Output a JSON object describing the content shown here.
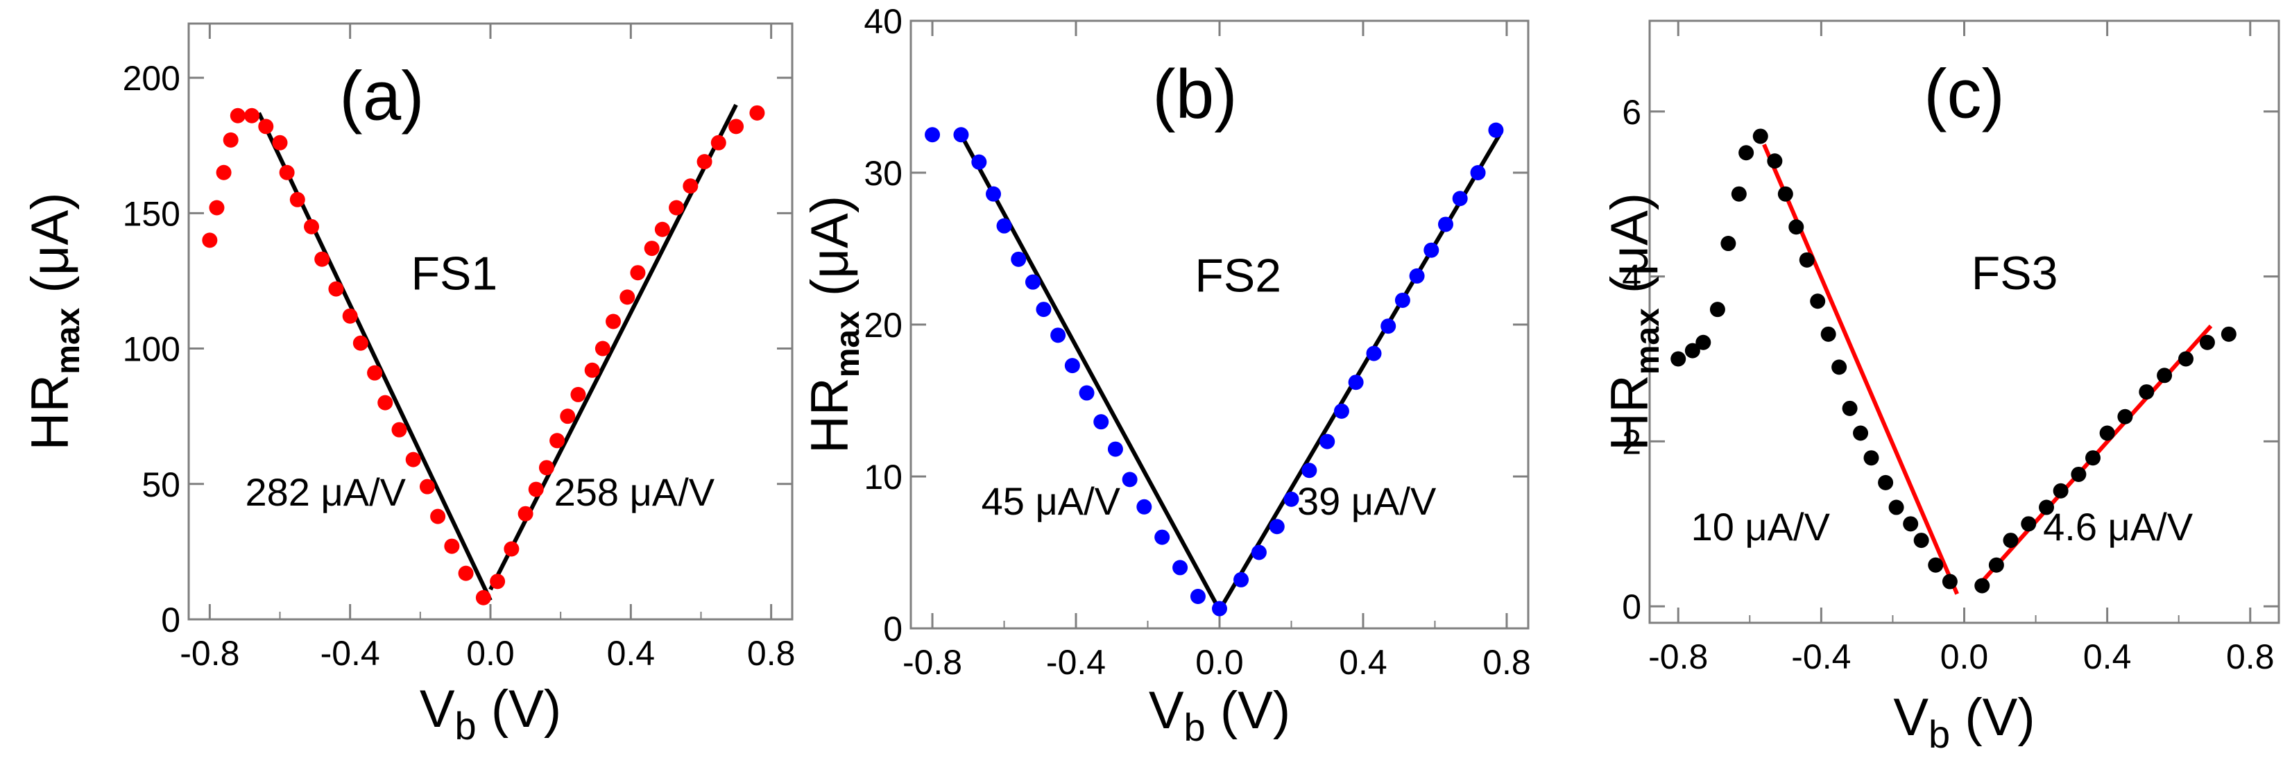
{
  "chart_data": [
    {
      "type": "scatter",
      "panel_label": "(a)",
      "sample_label": "FS1",
      "xlabel": {
        "main": "V",
        "sub": "b",
        "unit": " (V)"
      },
      "ylabel": {
        "main": "HR",
        "sub": "max",
        "unit": " (μA)"
      },
      "xlim": [
        -0.86,
        0.86
      ],
      "ylim": [
        0,
        220
      ],
      "xticks": [
        -0.8,
        -0.4,
        0.0,
        0.4,
        0.8
      ],
      "xtick_labels": [
        "-0.8",
        "-0.4",
        "0.0",
        "0.4",
        "0.8"
      ],
      "yticks": [
        0,
        50,
        100,
        150,
        200
      ],
      "ytick_labels": [
        "0",
        "50",
        "100",
        "150",
        "200"
      ],
      "grid": false,
      "point_color": "#ff0000",
      "fit_color": "#000000",
      "slope_labels": [
        "282 μA/V",
        "258 μA/V"
      ],
      "points": [
        [
          -0.8,
          140
        ],
        [
          -0.78,
          152
        ],
        [
          -0.76,
          165
        ],
        [
          -0.74,
          177
        ],
        [
          -0.72,
          186
        ],
        [
          -0.68,
          186
        ],
        [
          -0.64,
          182
        ],
        [
          -0.6,
          176
        ],
        [
          -0.58,
          165
        ],
        [
          -0.55,
          155
        ],
        [
          -0.51,
          145
        ],
        [
          -0.48,
          133
        ],
        [
          -0.44,
          122
        ],
        [
          -0.4,
          112
        ],
        [
          -0.37,
          102
        ],
        [
          -0.33,
          91
        ],
        [
          -0.3,
          80
        ],
        [
          -0.26,
          70
        ],
        [
          -0.22,
          59
        ],
        [
          -0.18,
          49
        ],
        [
          -0.15,
          38
        ],
        [
          -0.11,
          27
        ],
        [
          -0.07,
          17
        ],
        [
          -0.02,
          8
        ],
        [
          0.02,
          14
        ],
        [
          0.06,
          26
        ],
        [
          0.1,
          39
        ],
        [
          0.13,
          48
        ],
        [
          0.16,
          56
        ],
        [
          0.19,
          66
        ],
        [
          0.22,
          75
        ],
        [
          0.25,
          83
        ],
        [
          0.29,
          92
        ],
        [
          0.32,
          100
        ],
        [
          0.35,
          110
        ],
        [
          0.39,
          119
        ],
        [
          0.42,
          128
        ],
        [
          0.46,
          137
        ],
        [
          0.49,
          144
        ],
        [
          0.53,
          152
        ],
        [
          0.57,
          160
        ],
        [
          0.61,
          169
        ],
        [
          0.65,
          176
        ],
        [
          0.7,
          182
        ],
        [
          0.76,
          187
        ]
      ],
      "fit_lines": [
        {
          "x": [
            -0.66,
            0.0
          ],
          "y": [
            187,
            7
          ]
        },
        {
          "x": [
            0.0,
            0.7
          ],
          "y": [
            11,
            190
          ]
        }
      ]
    },
    {
      "type": "scatter",
      "panel_label": "(b)",
      "sample_label": "FS2",
      "xlabel": {
        "main": "V",
        "sub": "b",
        "unit": " (V)"
      },
      "ylabel": {
        "main": "HR",
        "sub": "max",
        "unit": " (μA)"
      },
      "xlim": [
        -0.86,
        0.86
      ],
      "ylim": [
        0,
        40
      ],
      "xticks": [
        -0.8,
        -0.4,
        0.0,
        0.4,
        0.8
      ],
      "xtick_labels": [
        "-0.8",
        "-0.4",
        "0.0",
        "0.4",
        "0.8"
      ],
      "yticks": [
        0,
        10,
        20,
        30,
        40
      ],
      "ytick_labels": [
        "0",
        "10",
        "20",
        "30",
        "40"
      ],
      "grid": false,
      "point_color": "#0000ff",
      "fit_color": "#000000",
      "slope_labels": [
        "45 μA/V",
        "39 μA/V"
      ],
      "points": [
        [
          -0.8,
          32.5
        ],
        [
          -0.72,
          32.5
        ],
        [
          -0.67,
          30.7
        ],
        [
          -0.63,
          28.6
        ],
        [
          -0.6,
          26.5
        ],
        [
          -0.56,
          24.3
        ],
        [
          -0.52,
          22.8
        ],
        [
          -0.49,
          21.0
        ],
        [
          -0.45,
          19.3
        ],
        [
          -0.41,
          17.3
        ],
        [
          -0.37,
          15.5
        ],
        [
          -0.33,
          13.6
        ],
        [
          -0.29,
          11.8
        ],
        [
          -0.25,
          9.8
        ],
        [
          -0.21,
          8.0
        ],
        [
          -0.16,
          6.0
        ],
        [
          -0.11,
          4.0
        ],
        [
          -0.06,
          2.1
        ],
        [
          0.0,
          1.3
        ],
        [
          0.06,
          3.2
        ],
        [
          0.11,
          5.0
        ],
        [
          0.16,
          6.7
        ],
        [
          0.2,
          8.5
        ],
        [
          0.25,
          10.4
        ],
        [
          0.3,
          12.3
        ],
        [
          0.34,
          14.3
        ],
        [
          0.38,
          16.2
        ],
        [
          0.43,
          18.1
        ],
        [
          0.47,
          19.9
        ],
        [
          0.51,
          21.6
        ],
        [
          0.55,
          23.2
        ],
        [
          0.59,
          24.9
        ],
        [
          0.63,
          26.6
        ],
        [
          0.67,
          28.3
        ],
        [
          0.72,
          30.0
        ],
        [
          0.77,
          32.8
        ]
      ],
      "fit_lines": [
        {
          "x": [
            -0.72,
            0.0
          ],
          "y": [
            32.5,
            1.2
          ]
        },
        {
          "x": [
            0.0,
            0.78
          ],
          "y": [
            1.2,
            32.5
          ]
        }
      ]
    },
    {
      "type": "scatter",
      "panel_label": "(c)",
      "sample_label": "FS3",
      "xlabel": {
        "main": "V",
        "sub": "b",
        "unit": " (V)"
      },
      "ylabel": {
        "main": "HR",
        "sub": "max",
        "unit": " (μA)"
      },
      "xlim": [
        -0.88,
        0.88
      ],
      "ylim": [
        -0.2,
        7.1
      ],
      "xticks": [
        -0.8,
        -0.4,
        0.0,
        0.4,
        0.8
      ],
      "xtick_labels": [
        "-0.8",
        "-0.4",
        "0.0",
        "0.4",
        "0.8"
      ],
      "yticks": [
        0,
        2,
        4,
        6
      ],
      "ytick_labels": [
        "0",
        "2",
        "4",
        "6"
      ],
      "grid": false,
      "point_color": "#000000",
      "fit_color": "#ff0000",
      "slope_labels": [
        "10 μA/V",
        "4.6 μA/V"
      ],
      "points": [
        [
          -0.8,
          3.0
        ],
        [
          -0.76,
          3.1
        ],
        [
          -0.73,
          3.2
        ],
        [
          -0.69,
          3.6
        ],
        [
          -0.66,
          4.4
        ],
        [
          -0.63,
          5.0
        ],
        [
          -0.61,
          5.5
        ],
        [
          -0.57,
          5.7
        ],
        [
          -0.53,
          5.4
        ],
        [
          -0.5,
          5.0
        ],
        [
          -0.47,
          4.6
        ],
        [
          -0.44,
          4.2
        ],
        [
          -0.41,
          3.7
        ],
        [
          -0.38,
          3.3
        ],
        [
          -0.35,
          2.9
        ],
        [
          -0.32,
          2.4
        ],
        [
          -0.29,
          2.1
        ],
        [
          -0.26,
          1.8
        ],
        [
          -0.22,
          1.5
        ],
        [
          -0.19,
          1.2
        ],
        [
          -0.15,
          1.0
        ],
        [
          -0.12,
          0.8
        ],
        [
          -0.08,
          0.5
        ],
        [
          -0.04,
          0.3
        ],
        [
          0.05,
          0.25
        ],
        [
          0.09,
          0.5
        ],
        [
          0.13,
          0.8
        ],
        [
          0.18,
          1.0
        ],
        [
          0.23,
          1.2
        ],
        [
          0.27,
          1.4
        ],
        [
          0.32,
          1.6
        ],
        [
          0.36,
          1.8
        ],
        [
          0.4,
          2.1
        ],
        [
          0.45,
          2.3
        ],
        [
          0.51,
          2.6
        ],
        [
          0.56,
          2.8
        ],
        [
          0.62,
          3.0
        ],
        [
          0.68,
          3.2
        ],
        [
          0.74,
          3.3
        ]
      ],
      "fit_lines": [
        {
          "x": [
            -0.56,
            -0.02
          ],
          "y": [
            5.6,
            0.15
          ]
        },
        {
          "x": [
            0.05,
            0.69
          ],
          "y": [
            0.3,
            3.4
          ]
        }
      ]
    }
  ]
}
